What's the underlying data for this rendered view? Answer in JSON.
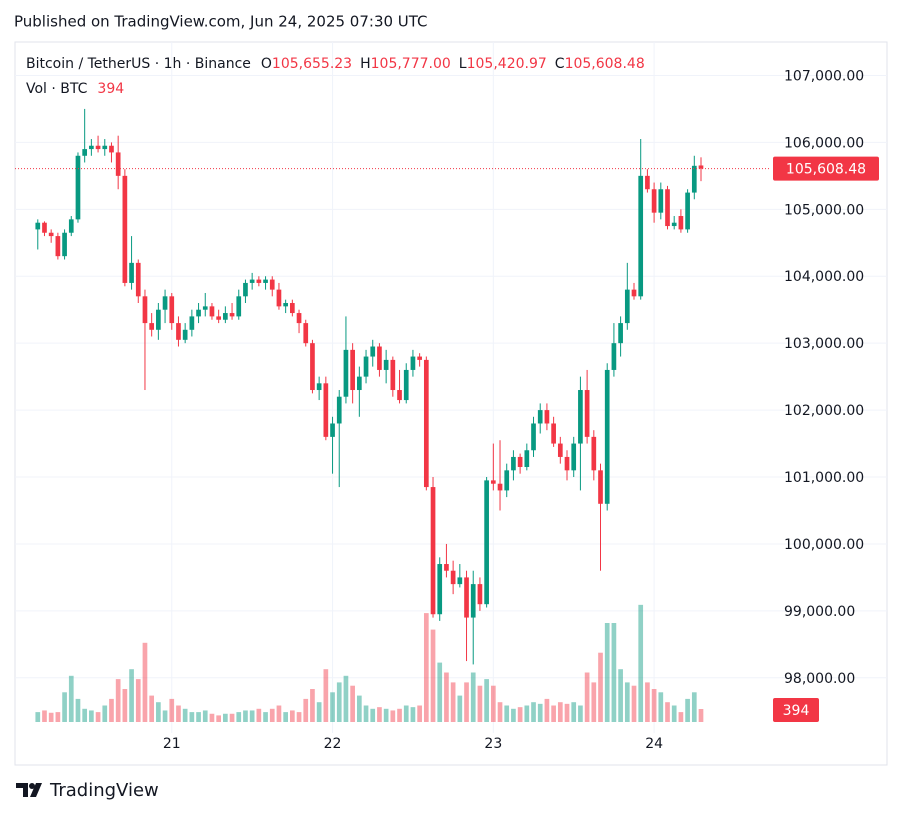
{
  "header": {
    "published": "Published on TradingView.com, Jun 24, 2025 07:30 UTC"
  },
  "footer": {
    "brand": "TradingView"
  },
  "chart_data": {
    "type": "candlestick",
    "legend": {
      "symbol": "Bitcoin / TetherUS · 1h · Binance",
      "fields": [
        {
          "key": "O",
          "value": "105,655.23"
        },
        {
          "key": "H",
          "value": "105,777.00"
        },
        {
          "key": "L",
          "value": "105,420.97"
        },
        {
          "key": "C",
          "value": "105,608.48"
        }
      ],
      "volume": "Vol · BTC"
    },
    "last_close_label": "105,608.48",
    "up_color": "#089981",
    "down_color": "#f23645",
    "grid": true,
    "ylim": [
      97250,
      107500
    ],
    "yticks": [
      {
        "value": 98000,
        "label": "98,000.00"
      },
      {
        "value": 99000,
        "label": "99,000.00"
      },
      {
        "value": 100000,
        "label": "100,000.00"
      },
      {
        "value": 101000,
        "label": "101,000.00"
      },
      {
        "value": 102000,
        "label": "102,000.00"
      },
      {
        "value": 103000,
        "label": "103,000.00"
      },
      {
        "value": 104000,
        "label": "104,000.00"
      },
      {
        "value": 105000,
        "label": "105,000.00"
      },
      {
        "value": 106000,
        "label": "106,000.00"
      },
      {
        "value": 107000,
        "label": "107,000.00"
      }
    ],
    "xlim": [
      -3.4,
      109.3
    ],
    "xticks": [
      {
        "value": 20,
        "label": "21"
      },
      {
        "value": 44,
        "label": "22"
      },
      {
        "value": 68,
        "label": "23"
      },
      {
        "value": 92,
        "label": "24"
      }
    ],
    "vlim": [
      0,
      10000
    ],
    "candles": [
      [
        104700,
        104850,
        104400,
        104800
      ],
      [
        104800,
        104820,
        104600,
        104650
      ],
      [
        104650,
        104700,
        104500,
        104600
      ],
      [
        104600,
        104650,
        104250,
        104300
      ],
      [
        104300,
        104700,
        104250,
        104650
      ],
      [
        104650,
        104900,
        104600,
        104850
      ],
      [
        104850,
        105850,
        104800,
        105800
      ],
      [
        105800,
        106500,
        105700,
        105900
      ],
      [
        105900,
        106050,
        105800,
        105950
      ],
      [
        105950,
        106100,
        105850,
        105900
      ],
      [
        105900,
        106050,
        105800,
        105950
      ],
      [
        105950,
        106000,
        105700,
        105850
      ],
      [
        105850,
        106100,
        105300,
        105500
      ],
      [
        105500,
        105600,
        103850,
        103900
      ],
      [
        103900,
        104600,
        103800,
        104200
      ],
      [
        104200,
        104250,
        103600,
        103700
      ],
      [
        103700,
        103800,
        102300,
        103300
      ],
      [
        103300,
        103450,
        103100,
        103200
      ],
      [
        103200,
        103600,
        103050,
        103500
      ],
      [
        103500,
        103800,
        103300,
        103700
      ],
      [
        103700,
        103750,
        103200,
        103300
      ],
      [
        103300,
        103400,
        102950,
        103050
      ],
      [
        103050,
        103300,
        103000,
        103200
      ],
      [
        103200,
        103500,
        103100,
        103400
      ],
      [
        103400,
        103600,
        103300,
        103500
      ],
      [
        103500,
        103750,
        103400,
        103550
      ],
      [
        103550,
        103600,
        103350,
        103400
      ],
      [
        103400,
        103500,
        103300,
        103350
      ],
      [
        103350,
        103550,
        103300,
        103450
      ],
      [
        103450,
        103600,
        103350,
        103400
      ],
      [
        103400,
        103800,
        103350,
        103700
      ],
      [
        103700,
        103950,
        103600,
        103900
      ],
      [
        103900,
        104050,
        103800,
        103950
      ],
      [
        103950,
        104000,
        103850,
        103900
      ],
      [
        103900,
        104000,
        103800,
        103950
      ],
      [
        103950,
        104000,
        103700,
        103800
      ],
      [
        103800,
        103900,
        103500,
        103550
      ],
      [
        103550,
        103650,
        103450,
        103600
      ],
      [
        103600,
        103650,
        103400,
        103450
      ],
      [
        103450,
        103500,
        103150,
        103300
      ],
      [
        103300,
        103350,
        102950,
        103000
      ],
      [
        103000,
        103050,
        102250,
        102300
      ],
      [
        102300,
        102500,
        102150,
        102400
      ],
      [
        102400,
        102500,
        101550,
        101600
      ],
      [
        101600,
        101900,
        101050,
        101800
      ],
      [
        101800,
        102300,
        100850,
        102200
      ],
      [
        102200,
        103400,
        102100,
        102900
      ],
      [
        102900,
        103000,
        102100,
        102300
      ],
      [
        102300,
        102650,
        101900,
        102500
      ],
      [
        102500,
        102900,
        102400,
        102800
      ],
      [
        102800,
        103050,
        102650,
        102950
      ],
      [
        102950,
        103000,
        102500,
        102600
      ],
      [
        102600,
        102900,
        102400,
        102750
      ],
      [
        102750,
        102800,
        102200,
        102300
      ],
      [
        102300,
        102600,
        102100,
        102150
      ],
      [
        102150,
        102700,
        102100,
        102600
      ],
      [
        102600,
        102900,
        102500,
        102800
      ],
      [
        102800,
        102850,
        102650,
        102750
      ],
      [
        102750,
        102800,
        100800,
        100850
      ],
      [
        100850,
        101000,
        98900,
        98950
      ],
      [
        98950,
        99800,
        98850,
        99700
      ],
      [
        99700,
        100000,
        99500,
        99600
      ],
      [
        99600,
        99750,
        99250,
        99400
      ],
      [
        99400,
        99700,
        99350,
        99500
      ],
      [
        99500,
        99600,
        98250,
        98900
      ],
      [
        98900,
        99600,
        98200,
        99400
      ],
      [
        99400,
        99500,
        99000,
        99100
      ],
      [
        99100,
        101000,
        99050,
        100950
      ],
      [
        100950,
        101500,
        100800,
        100900
      ],
      [
        100900,
        101550,
        100500,
        100800
      ],
      [
        100800,
        101200,
        100700,
        101100
      ],
      [
        101100,
        101400,
        100950,
        101300
      ],
      [
        101300,
        101350,
        101050,
        101150
      ],
      [
        101150,
        101500,
        101100,
        101400
      ],
      [
        101400,
        101900,
        101300,
        101800
      ],
      [
        101800,
        102100,
        101650,
        102000
      ],
      [
        102000,
        102100,
        101700,
        101800
      ],
      [
        101800,
        101900,
        101450,
        101500
      ],
      [
        101500,
        101600,
        101200,
        101300
      ],
      [
        101300,
        101400,
        100950,
        101100
      ],
      [
        101100,
        101600,
        101000,
        101500
      ],
      [
        101500,
        102500,
        100800,
        102300
      ],
      [
        102300,
        102600,
        101500,
        101600
      ],
      [
        101600,
        101700,
        100950,
        101100
      ],
      [
        101100,
        101200,
        99600,
        100600
      ],
      [
        100600,
        102700,
        100500,
        102600
      ],
      [
        102600,
        103300,
        102500,
        103000
      ],
      [
        103000,
        103400,
        102800,
        103300
      ],
      [
        103300,
        104200,
        103200,
        103800
      ],
      [
        103800,
        103900,
        103650,
        103700
      ],
      [
        103700,
        106050,
        103650,
        105500
      ],
      [
        105500,
        105600,
        105250,
        105300
      ],
      [
        105300,
        105400,
        104800,
        104950
      ],
      [
        104950,
        105400,
        104850,
        105300
      ],
      [
        105300,
        105350,
        104700,
        104750
      ],
      [
        104750,
        104900,
        104700,
        104800
      ],
      [
        104900,
        105000,
        104650,
        104700
      ],
      [
        104700,
        105300,
        104650,
        105250
      ],
      [
        105250,
        105800,
        105150,
        105650
      ],
      [
        105655.23,
        105777.0,
        105420.97,
        105608.48
      ]
    ],
    "volumes": [
      300,
      350,
      280,
      300,
      900,
      1400,
      700,
      400,
      350,
      300,
      500,
      700,
      1300,
      1000,
      1600,
      1300,
      2400,
      800,
      600,
      350,
      700,
      500,
      400,
      300,
      300,
      350,
      250,
      200,
      250,
      250,
      300,
      350,
      350,
      400,
      300,
      400,
      500,
      300,
      350,
      300,
      700,
      1000,
      600,
      1600,
      900,
      1200,
      1400,
      1100,
      800,
      500,
      400,
      450,
      400,
      350,
      400,
      500,
      450,
      500,
      3300,
      2800,
      1800,
      1500,
      1200,
      800,
      1200,
      1500,
      1100,
      1300,
      1100,
      600,
      500,
      400,
      450,
      500,
      600,
      550,
      700,
      500,
      600,
      550,
      600,
      500,
      1500,
      1200,
      2100,
      3000,
      3000,
      1600,
      1200,
      1100,
      3550,
      1200,
      1000,
      900,
      600,
      500,
      300,
      700,
      900,
      394
    ]
  }
}
